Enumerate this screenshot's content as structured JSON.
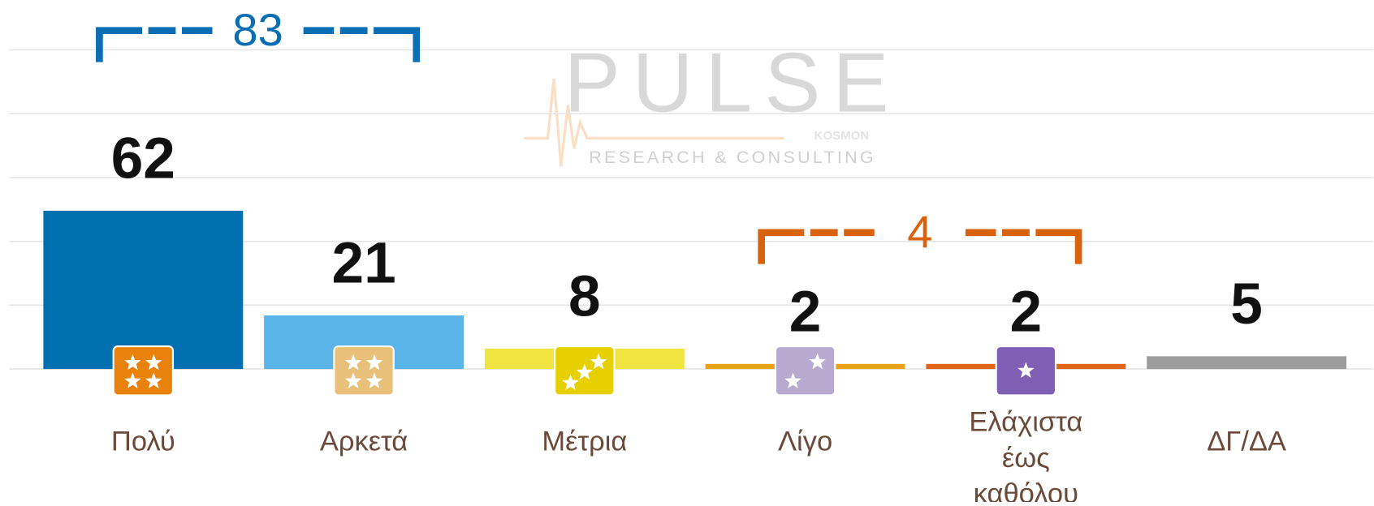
{
  "chart_data": {
    "type": "bar",
    "categories": [
      "Πολύ",
      "Αρκετά",
      "Μέτρια",
      "Λίγο",
      "Ελάχιστα έως καθόλου",
      "ΔΓ/ΔΑ"
    ],
    "values": [
      62,
      21,
      8,
      2,
      2,
      5
    ],
    "colors": [
      "#0070b0",
      "#5ab4e8",
      "#f0e440",
      "#e8a418",
      "#e0661a",
      "#9c9c9c"
    ],
    "icon_colors": [
      "#e8820a",
      "#e8c07a",
      "#e6d000",
      "#b8a9d0",
      "#7f5fb3",
      null
    ],
    "ylim": [
      0,
      125
    ],
    "yticks": [
      0,
      25,
      50,
      75,
      100,
      125
    ],
    "grid": true,
    "brackets": [
      {
        "label": 83,
        "from": 0,
        "to": 1,
        "color": "#0a6eb4"
      },
      {
        "label": 4,
        "from": 3,
        "to": 4,
        "color": "#d9620f"
      }
    ],
    "watermark": {
      "title": "PULSE",
      "brand": "KOSMON",
      "subtitle": "RESEARCH & CONSULTING"
    }
  }
}
